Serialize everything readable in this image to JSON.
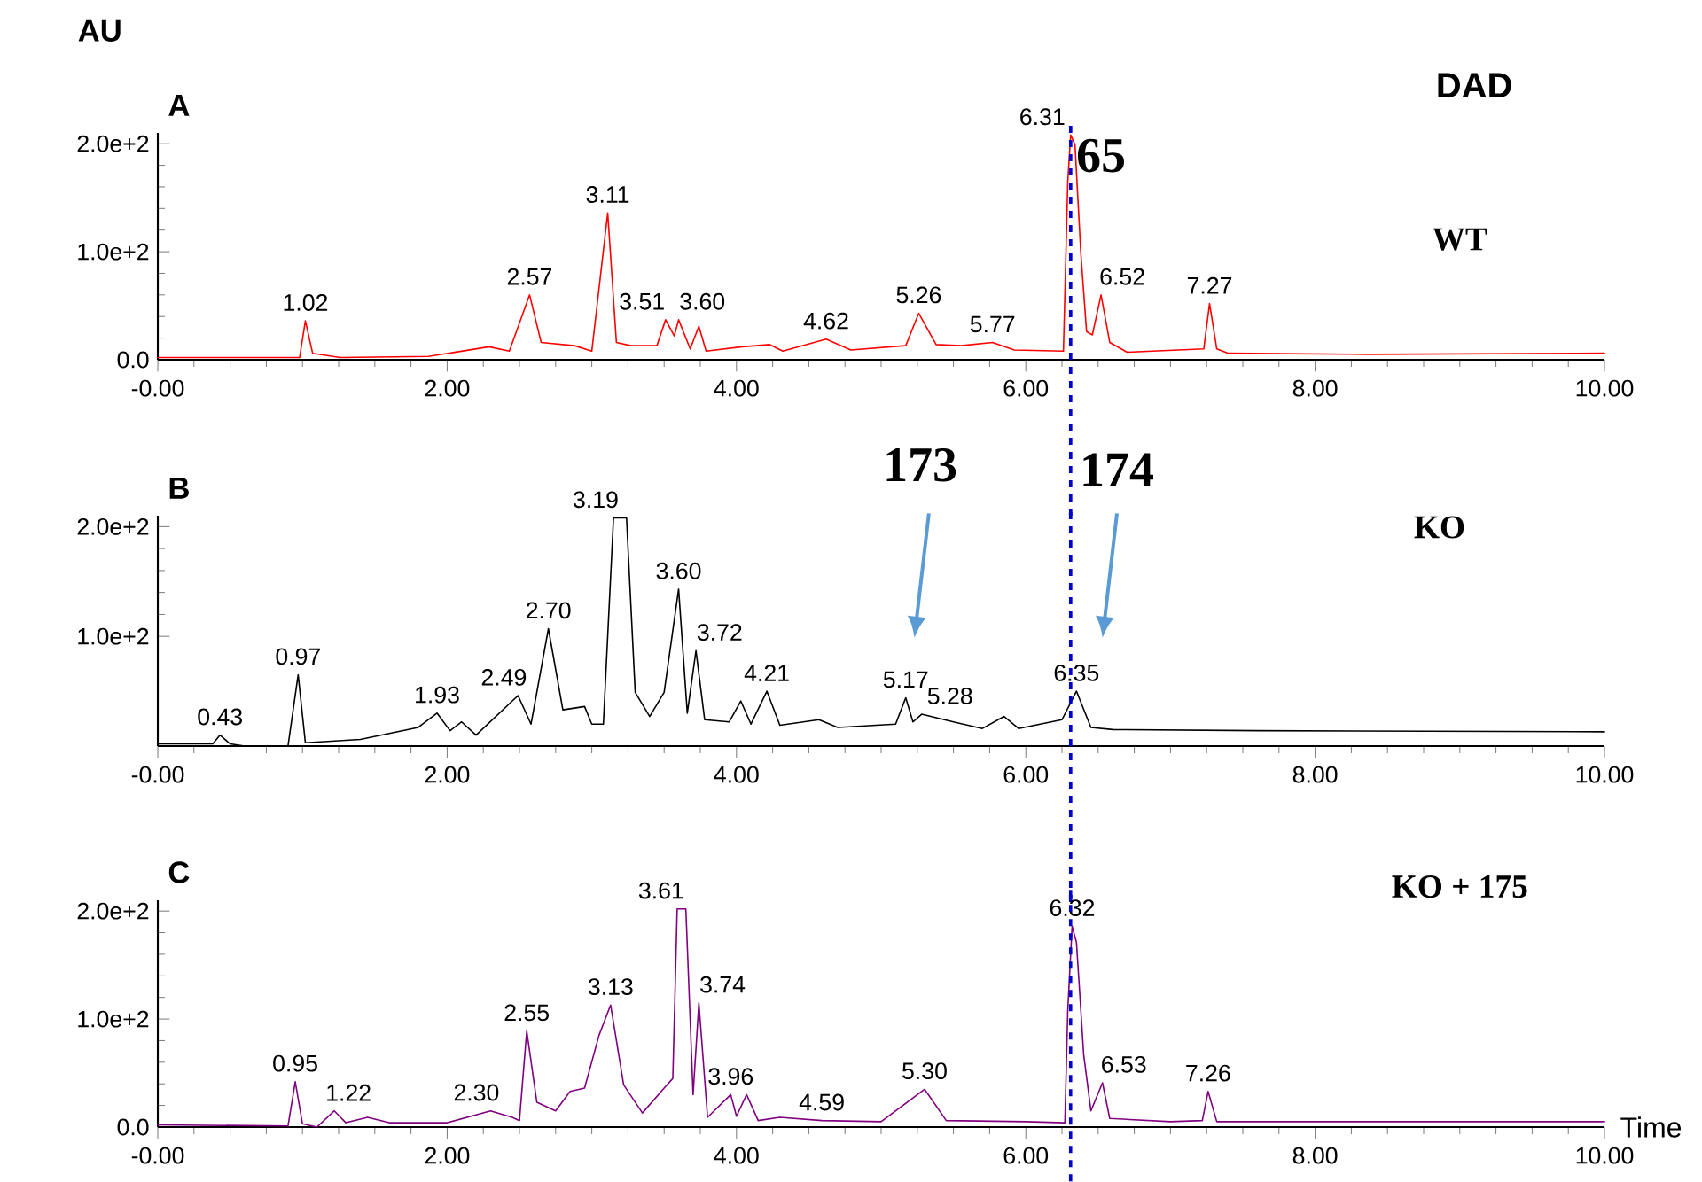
{
  "chart_data": [
    {
      "type": "line",
      "title": "A",
      "ylabel": "AU",
      "x": [
        0,
        0.98,
        1.02,
        1.07,
        1.26,
        1.87,
        2.29,
        2.43,
        2.57,
        2.65,
        2.88,
        3.0,
        3.11,
        3.17,
        3.27,
        3.45,
        3.51,
        3.57,
        3.6,
        3.68,
        3.74,
        3.79,
        4.04,
        4.23,
        4.32,
        4.62,
        4.79,
        5.17,
        5.26,
        5.38,
        5.55,
        5.77,
        5.92,
        6.26,
        6.29,
        6.31,
        6.34,
        6.38,
        6.42,
        6.46,
        6.52,
        6.58,
        6.7,
        7.23,
        7.27,
        7.32,
        7.4,
        8.38,
        10
      ],
      "series": [
        {
          "color": "#ff0000",
          "values": [
            2,
            2,
            36,
            6,
            2,
            3,
            12,
            8,
            60,
            16,
            13,
            8,
            136,
            16,
            13,
            13,
            37,
            22,
            37,
            10,
            31,
            8,
            12,
            14,
            8,
            19,
            9,
            13,
            43,
            14,
            13,
            16,
            9,
            8,
            165,
            208,
            199,
            99,
            26,
            23,
            60,
            16,
            7,
            10,
            52,
            10,
            6,
            5,
            6
          ]
        }
      ],
      "xlim": [
        0,
        10
      ],
      "xticks": [
        {
          "value": 0,
          "label": "-0.00"
        },
        {
          "value": 2,
          "label": "2.00"
        },
        {
          "value": 4,
          "label": "4.00"
        },
        {
          "value": 6,
          "label": "6.00"
        },
        {
          "value": 8,
          "label": "8.00"
        },
        {
          "value": 10,
          "label": "10.00"
        }
      ],
      "ylim": [
        0,
        210
      ],
      "yticks": [
        {
          "value": 0,
          "label": "0.0"
        },
        {
          "value": 100,
          "label": "1.0e+2"
        },
        {
          "value": 200,
          "label": "2.0e+2"
        }
      ],
      "ref_lines": [
        {
          "axis": "x",
          "value": 6.31,
          "color": "#0000cc",
          "line_style": "dashed"
        }
      ],
      "annotations": [
        "DAD",
        "65",
        "WT",
        {
          "text": "1.02",
          "x": 1.02,
          "y": 36
        },
        {
          "text": "2.57",
          "x": 2.57,
          "y": 60
        },
        {
          "text": "3.11",
          "x": 3.11,
          "y": 136
        },
        {
          "text": "3.51",
          "x": 3.51,
          "y": 37
        },
        {
          "text": "3.60",
          "x": 3.6,
          "y": 37
        },
        {
          "text": "4.62",
          "x": 4.62,
          "y": 19
        },
        {
          "text": "5.26",
          "x": 5.26,
          "y": 43
        },
        {
          "text": "5.77",
          "x": 5.77,
          "y": 16
        },
        {
          "text": "6.31",
          "x": 6.31,
          "y": 208
        },
        {
          "text": "6.52",
          "x": 6.52,
          "y": 60
        },
        {
          "text": "7.27",
          "x": 7.27,
          "y": 52
        }
      ]
    },
    {
      "type": "line",
      "title": "B",
      "x": [
        0,
        0.38,
        0.43,
        0.5,
        0.6,
        0.9,
        0.97,
        1.02,
        1.4,
        1.8,
        1.93,
        2.02,
        2.1,
        2.2,
        2.49,
        2.58,
        2.7,
        2.8,
        2.95,
        3.0,
        3.08,
        3.15,
        3.19,
        3.24,
        3.3,
        3.4,
        3.5,
        3.6,
        3.66,
        3.72,
        3.78,
        3.95,
        4.03,
        4.1,
        4.21,
        4.3,
        4.57,
        4.7,
        5.1,
        5.17,
        5.22,
        5.28,
        5.5,
        5.7,
        5.85,
        5.95,
        6.25,
        6.35,
        6.45,
        6.6,
        7.6,
        10
      ],
      "series": [
        {
          "color": "#000000",
          "values": [
            2,
            2,
            10,
            2,
            0,
            0,
            65,
            3,
            6,
            17,
            30,
            14,
            22,
            10,
            46,
            20,
            107,
            33,
            36,
            20,
            20,
            208,
            208,
            208,
            49,
            27,
            49,
            143,
            30,
            87,
            24,
            22,
            41,
            20,
            50,
            19,
            24,
            17,
            20,
            44,
            22,
            29,
            22,
            16,
            27,
            16,
            24,
            50,
            17,
            15,
            14,
            13
          ]
        }
      ],
      "xlim": [
        0,
        10
      ],
      "xticks": [
        {
          "value": 0,
          "label": "-0.00"
        },
        {
          "value": 2,
          "label": "2.00"
        },
        {
          "value": 4,
          "label": "4.00"
        },
        {
          "value": 6,
          "label": "6.00"
        },
        {
          "value": 8,
          "label": "8.00"
        },
        {
          "value": 10,
          "label": "10.00"
        }
      ],
      "ylim": [
        0,
        210
      ],
      "yticks": [
        {
          "value": 100,
          "label": "1.0e+2"
        },
        {
          "value": 200,
          "label": "2.0e+2"
        }
      ],
      "ref_lines": [
        {
          "axis": "x",
          "value": 6.31,
          "color": "#0000cc",
          "line_style": "dashed"
        }
      ],
      "annotations": [
        "173",
        "174",
        "KO",
        {
          "text": "0.43",
          "x": 0.43,
          "y": 10
        },
        {
          "text": "0.97",
          "x": 0.97,
          "y": 65
        },
        {
          "text": "1.93",
          "x": 1.93,
          "y": 30
        },
        {
          "text": "2.49",
          "x": 2.49,
          "y": 46
        },
        {
          "text": "2.70",
          "x": 2.7,
          "y": 107
        },
        {
          "text": "3.19",
          "x": 3.19,
          "y": 208
        },
        {
          "text": "3.60",
          "x": 3.6,
          "y": 143
        },
        {
          "text": "3.72",
          "x": 3.72,
          "y": 87
        },
        {
          "text": "4.21",
          "x": 4.21,
          "y": 50
        },
        {
          "text": "5.17",
          "x": 5.17,
          "y": 44
        },
        {
          "text": "5.28",
          "x": 5.28,
          "y": 29
        },
        {
          "text": "6.35",
          "x": 6.35,
          "y": 50
        }
      ]
    },
    {
      "type": "line",
      "title": "C",
      "xlabel": "Time",
      "x": [
        0,
        0.9,
        0.95,
        1.0,
        1.1,
        1.22,
        1.3,
        1.45,
        1.6,
        2.0,
        2.3,
        2.45,
        2.5,
        2.55,
        2.62,
        2.75,
        2.85,
        2.95,
        3.05,
        3.13,
        3.22,
        3.35,
        3.5,
        3.56,
        3.59,
        3.61,
        3.65,
        3.7,
        3.74,
        3.8,
        3.96,
        4.0,
        4.07,
        4.15,
        4.3,
        4.59,
        5.0,
        5.3,
        5.45,
        6.0,
        6.27,
        6.29,
        6.32,
        6.35,
        6.4,
        6.45,
        6.53,
        6.58,
        7.0,
        7.22,
        7.26,
        7.32,
        8.5,
        10
      ],
      "series": [
        {
          "color": "#800080",
          "values": [
            2,
            1,
            42,
            3,
            0,
            15,
            4,
            9,
            4,
            4,
            15,
            9,
            6,
            89,
            23,
            15,
            33,
            36,
            85,
            113,
            39,
            13,
            36,
            45,
            202,
            202,
            202,
            30,
            115,
            9,
            30,
            10,
            30,
            6,
            9,
            6,
            5,
            35,
            6,
            5,
            4,
            108,
            186,
            171,
            67,
            15,
            41,
            8,
            5,
            6,
            33,
            5,
            5,
            5
          ]
        }
      ],
      "xlim": [
        0,
        10
      ],
      "xticks": [
        {
          "value": 0,
          "label": "-0.00"
        },
        {
          "value": 2,
          "label": "2.00"
        },
        {
          "value": 4,
          "label": "4.00"
        },
        {
          "value": 6,
          "label": "6.00"
        },
        {
          "value": 8,
          "label": "8.00"
        },
        {
          "value": 10,
          "label": "10.00"
        }
      ],
      "ylim": [
        0,
        210
      ],
      "yticks": [
        {
          "value": 0,
          "label": "0.0"
        },
        {
          "value": 100,
          "label": "1.0e+2"
        },
        {
          "value": 200,
          "label": "2.0e+2"
        }
      ],
      "ref_lines": [
        {
          "axis": "x",
          "value": 6.31,
          "color": "#0000cc",
          "line_style": "dashed"
        }
      ],
      "annotations": [
        "KO + 175",
        {
          "text": "0.95",
          "x": 0.95,
          "y": 42
        },
        {
          "text": "1.22",
          "x": 1.22,
          "y": 15
        },
        {
          "text": "2.30",
          "x": 2.3,
          "y": 15
        },
        {
          "text": "2.55",
          "x": 2.55,
          "y": 89
        },
        {
          "text": "3.13",
          "x": 3.13,
          "y": 113
        },
        {
          "text": "3.61",
          "x": 3.61,
          "y": 202
        },
        {
          "text": "3.74",
          "x": 3.74,
          "y": 115
        },
        {
          "text": "3.96",
          "x": 3.96,
          "y": 30
        },
        {
          "text": "4.59",
          "x": 4.59,
          "y": 6
        },
        {
          "text": "5.30",
          "x": 5.3,
          "y": 35
        },
        {
          "text": "6.32",
          "x": 6.32,
          "y": 186
        },
        {
          "text": "6.53",
          "x": 6.53,
          "y": 41
        },
        {
          "text": "7.26",
          "x": 7.26,
          "y": 33
        }
      ]
    }
  ]
}
